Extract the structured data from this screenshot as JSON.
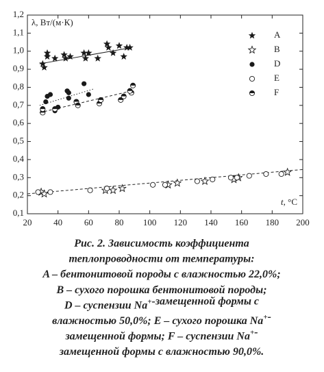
{
  "chart_data": {
    "type": "scatter",
    "ylabel": "λ, Вт/(м·К)",
    "xlabel_var": "t",
    "xlabel_unit": ", °C",
    "xlim": [
      20,
      200
    ],
    "ylim": [
      0.1,
      1.2
    ],
    "xticks": [
      20,
      40,
      60,
      80,
      100,
      120,
      140,
      160,
      180,
      200
    ],
    "yticks": [
      {
        "value": 0.1,
        "label": "0,1"
      },
      {
        "value": 0.2,
        "label": "0,2"
      },
      {
        "value": 0.3,
        "label": "0,3"
      },
      {
        "value": 0.4,
        "label": "0,4"
      },
      {
        "value": 0.5,
        "label": "0,5"
      },
      {
        "value": 0.6,
        "label": "0,6"
      },
      {
        "value": 0.7,
        "label": "0,7"
      },
      {
        "value": 0.8,
        "label": "0,8"
      },
      {
        "value": 0.9,
        "label": "0,9"
      },
      {
        "value": 1.0,
        "label": "1,0"
      },
      {
        "value": 1.1,
        "label": "1,1"
      },
      {
        "value": 1.2,
        "label": "1,2"
      }
    ],
    "series": [
      {
        "name": "A",
        "marker": "star-filled",
        "color": "#1a1a1a",
        "x": [
          30,
          31,
          33,
          33,
          38,
          44,
          45,
          48,
          57,
          58,
          60,
          66,
          72,
          73,
          76,
          80,
          83,
          85,
          87
        ],
        "values": [
          0.93,
          0.91,
          0.97,
          0.99,
          0.96,
          0.98,
          0.96,
          0.97,
          0.99,
          0.96,
          0.99,
          0.96,
          1.04,
          1.02,
          0.99,
          1.03,
          0.97,
          1.02,
          1.02
        ]
      },
      {
        "name": "B",
        "marker": "star-open",
        "color": "#1a1a1a",
        "x": [
          29,
          31,
          71,
          76,
          82,
          112,
          118,
          136,
          155,
          158,
          190
        ],
        "values": [
          0.22,
          0.21,
          0.23,
          0.23,
          0.24,
          0.26,
          0.27,
          0.28,
          0.29,
          0.3,
          0.33
        ]
      },
      {
        "name": "D",
        "marker": "circle-filled",
        "color": "#1a1a1a",
        "x": [
          30,
          32,
          33,
          35,
          38,
          40,
          46,
          47,
          47,
          57,
          60
        ],
        "values": [
          0.67,
          0.72,
          0.75,
          0.76,
          0.67,
          0.69,
          0.78,
          0.77,
          0.74,
          0.82,
          0.76
        ]
      },
      {
        "name": "E",
        "marker": "circle-open",
        "color": "#1a1a1a",
        "x": [
          27,
          35,
          61,
          72,
          102,
          110,
          131,
          141,
          153,
          157,
          165,
          176,
          186
        ],
        "values": [
          0.22,
          0.22,
          0.23,
          0.24,
          0.26,
          0.26,
          0.28,
          0.29,
          0.3,
          0.3,
          0.31,
          0.32,
          0.32
        ]
      },
      {
        "name": "F",
        "marker": "circle-half",
        "color": "#1a1a1a",
        "x": [
          30,
          30,
          38,
          52,
          53,
          67,
          68,
          81,
          83,
          88,
          89,
          87
        ],
        "values": [
          0.66,
          0.68,
          0.68,
          0.72,
          0.7,
          0.71,
          0.73,
          0.73,
          0.75,
          0.77,
          0.81,
          0.78
        ]
      }
    ],
    "trend_lines": [
      {
        "style": "solid",
        "x": [
          28,
          88
        ],
        "values": [
          0.93,
          1.02
        ]
      },
      {
        "style": "dotted",
        "x": [
          28,
          63
        ],
        "values": [
          0.7,
          0.79
        ]
      },
      {
        "style": "dashed",
        "x": [
          28,
          88
        ],
        "values": [
          0.66,
          0.78
        ]
      },
      {
        "style": "dashed",
        "x": [
          20,
          200
        ],
        "values": [
          0.21,
          0.345
        ]
      }
    ],
    "legend": "upper right"
  },
  "caption": [
    [
      "Рис. 2. Зависимость коэффициента"
    ],
    [
      "теплопроводности от температуры:"
    ],
    [
      "A – бентонитовой породы с влажностью 22,0%;"
    ],
    [
      "B – сухого порошка бентонитовой породы;"
    ],
    [
      "D – суспензии Na",
      {
        "sup": "+"
      },
      "-замещенной формы с"
    ],
    [
      "влажностью 50,0%; E – сухого порошка Na",
      {
        "sup": "+"
      },
      "-"
    ],
    [
      "замещенной формы; F – суспензии Na",
      {
        "sup": "+"
      },
      "-"
    ],
    [
      "замещенной формы с влажностью 90,0%."
    ]
  ]
}
